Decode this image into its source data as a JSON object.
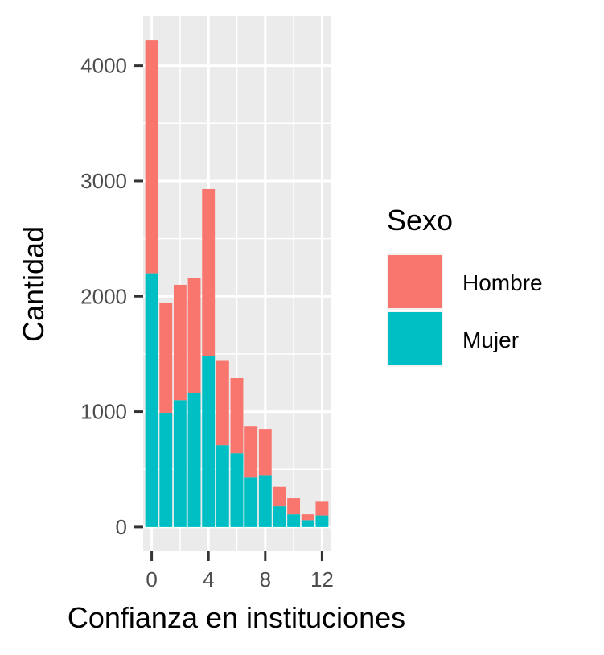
{
  "chart_data": {
    "type": "bar",
    "stacked": true,
    "xlabel": "Confianza en instituciones",
    "ylabel": "Cantidad",
    "x": [
      0,
      1,
      2,
      3,
      4,
      5,
      6,
      7,
      8,
      9,
      10,
      11,
      12
    ],
    "x_ticks": [
      0,
      4,
      8,
      12
    ],
    "y_ticks": [
      0,
      1000,
      2000,
      3000,
      4000
    ],
    "xlim": [
      -0.6,
      12.6
    ],
    "ylim": [
      -210,
      4430
    ],
    "grid": true,
    "legend": {
      "title": "Sexo",
      "position": "right"
    },
    "series": [
      {
        "name": "Hombre",
        "color": "#F8766D",
        "values": [
          2020,
          950,
          1000,
          1000,
          1450,
          730,
          650,
          440,
          400,
          170,
          140,
          50,
          120
        ]
      },
      {
        "name": "Mujer",
        "color": "#00BFC4",
        "values": [
          2200,
          990,
          1100,
          1160,
          1480,
          710,
          640,
          430,
          450,
          180,
          110,
          60,
          100
        ]
      }
    ]
  }
}
